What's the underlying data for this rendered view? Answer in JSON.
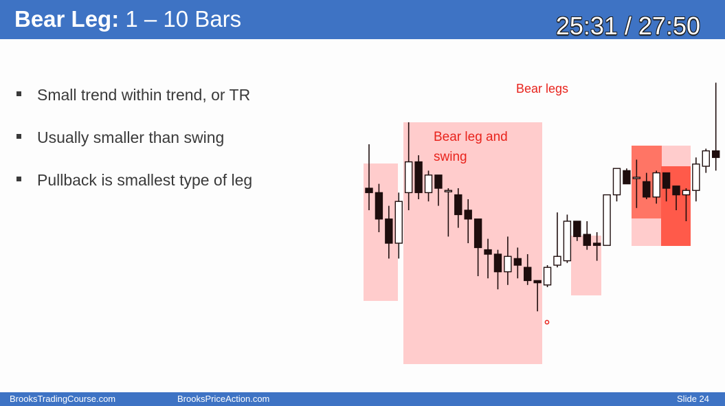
{
  "slide": {
    "title_bold": "Bear Leg:",
    "title_rest": " 1 – 10 Bars",
    "timer": "25:31 / 27:50"
  },
  "bullets": [
    "Small trend within trend, or TR",
    "Usually smaller than swing",
    "Pullback is smallest type of leg"
  ],
  "chart_labels": {
    "bear_legs": "Bear legs",
    "bear_leg_swing_line1": "Bear leg and",
    "bear_leg_swing_line2": "swing"
  },
  "footer": {
    "left": "BrooksTradingCourse.com",
    "center": "BrooksPriceAction.com",
    "slide_number": "Slide  24"
  },
  "colors": {
    "header": "#3e73c4",
    "highlight_light": "#ffcccc",
    "highlight_strong": "#ff5a4a",
    "annotation_text": "#e8231c",
    "bear_bar": "#1e0d0d",
    "bull_bar": "#ffffff"
  },
  "chart_data": {
    "type": "candlestick",
    "price_axis": "none",
    "bars": [
      {
        "o": 80,
        "h": 100,
        "l": 70,
        "c": 78
      },
      {
        "o": 78,
        "h": 82,
        "l": 60,
        "c": 66
      },
      {
        "o": 66,
        "h": 72,
        "l": 48,
        "c": 55
      },
      {
        "o": 55,
        "h": 78,
        "l": 48,
        "c": 74
      },
      {
        "o": 78,
        "h": 110,
        "l": 70,
        "c": 92
      },
      {
        "o": 92,
        "h": 95,
        "l": 75,
        "c": 78
      },
      {
        "o": 78,
        "h": 88,
        "l": 74,
        "c": 86
      },
      {
        "o": 86,
        "h": 86,
        "l": 72,
        "c": 80
      },
      {
        "o": 79,
        "h": 80,
        "l": 58,
        "c": 79
      },
      {
        "o": 77,
        "h": 80,
        "l": 62,
        "c": 68
      },
      {
        "o": 70,
        "h": 75,
        "l": 55,
        "c": 66
      },
      {
        "o": 66,
        "h": 66,
        "l": 40,
        "c": 53
      },
      {
        "o": 52,
        "h": 57,
        "l": 39,
        "c": 50
      },
      {
        "o": 50,
        "h": 52,
        "l": 34,
        "c": 42
      },
      {
        "o": 42,
        "h": 58,
        "l": 36,
        "c": 49
      },
      {
        "o": 48,
        "h": 53,
        "l": 39,
        "c": 45
      },
      {
        "o": 44,
        "h": 50,
        "l": 36,
        "c": 38
      },
      {
        "o": 38,
        "h": 38,
        "l": 24,
        "c": 37
      },
      {
        "o": 36,
        "h": 45,
        "l": 35,
        "c": 44
      },
      {
        "o": 45,
        "h": 69,
        "l": 44,
        "c": 49
      },
      {
        "o": 47,
        "h": 68,
        "l": 46,
        "c": 65
      },
      {
        "o": 65,
        "h": 65,
        "l": 56,
        "c": 58
      },
      {
        "o": 59,
        "h": 65,
        "l": 52,
        "c": 54
      },
      {
        "o": 55,
        "h": 60,
        "l": 47,
        "c": 54
      },
      {
        "o": 54,
        "h": 77,
        "l": 54,
        "c": 77
      },
      {
        "o": 77,
        "h": 89,
        "l": 74,
        "c": 89
      },
      {
        "o": 88,
        "h": 89,
        "l": 82,
        "c": 82
      },
      {
        "o": 85,
        "h": 93,
        "l": 71,
        "c": 85
      },
      {
        "o": 83,
        "h": 87,
        "l": 75,
        "c": 76
      },
      {
        "o": 76,
        "h": 88,
        "l": 73,
        "c": 87
      },
      {
        "o": 87,
        "h": 87,
        "l": 74,
        "c": 80
      },
      {
        "o": 81,
        "h": 81,
        "l": 70,
        "c": 77
      },
      {
        "o": 77,
        "h": 80,
        "l": 65,
        "c": 79
      },
      {
        "o": 79,
        "h": 94,
        "l": 74,
        "c": 91
      },
      {
        "o": 90,
        "h": 98,
        "l": 87,
        "c": 97
      },
      {
        "o": 97,
        "h": 128,
        "l": 88,
        "c": 94
      }
    ]
  }
}
